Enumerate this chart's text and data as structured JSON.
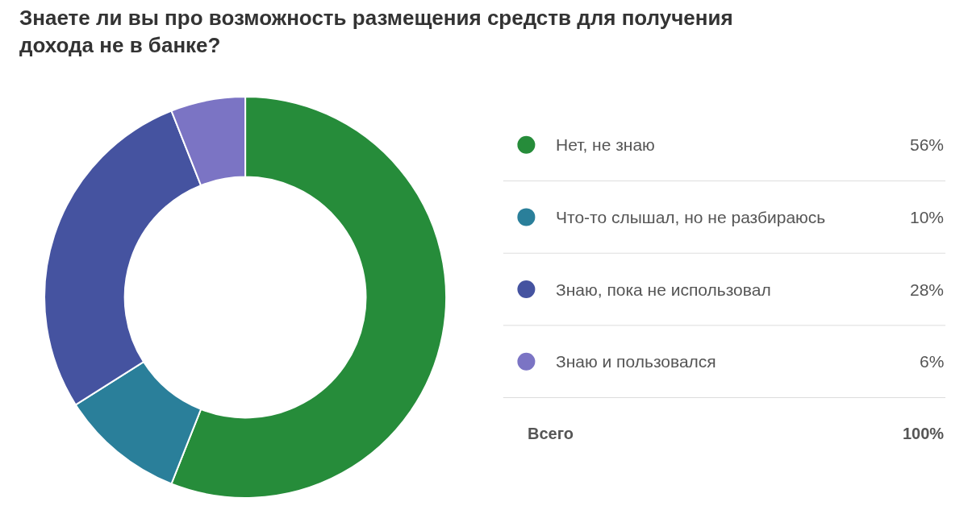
{
  "chart_data": {
    "type": "donut",
    "title": "Знаете ли вы про возможность размещения средств для получения дохода не в банке?",
    "categories": [
      "Нет, не знаю",
      "Что-то слышал, но не разбираюсь",
      "Знаю, пока не использовал",
      "Знаю и пользовался"
    ],
    "values": [
      56,
      10,
      28,
      6
    ],
    "colors": [
      "#268c3a",
      "#2a7f9a",
      "#4553a0",
      "#7b74c4"
    ],
    "value_labels": [
      "56%",
      "10%",
      "28%",
      "6%"
    ],
    "legend": "right",
    "annotations": [
      "Всего",
      "100%"
    ]
  }
}
